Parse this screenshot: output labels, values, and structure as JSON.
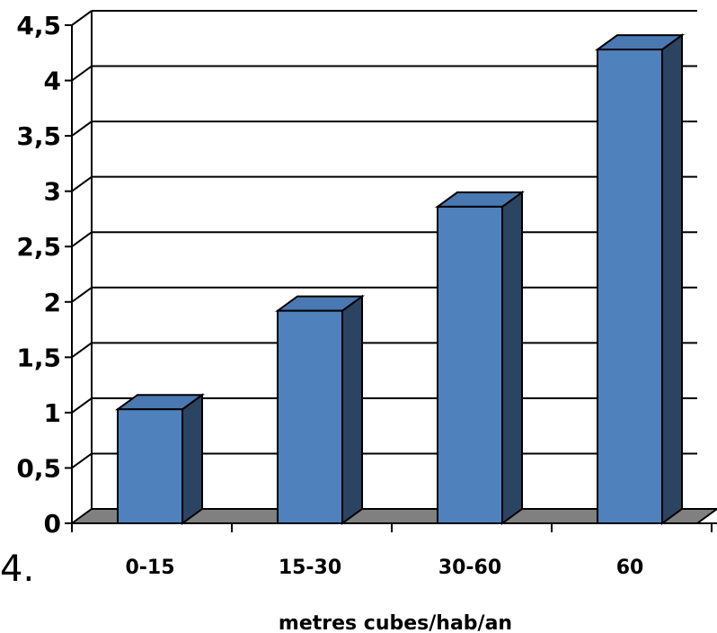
{
  "chart_data": {
    "type": "bar",
    "categories": [
      "0-15",
      "15-30",
      "30-60",
      "60"
    ],
    "values": [
      1.03,
      1.92,
      2.86,
      4.28
    ],
    "title": "",
    "xlabel": "metres cubes/hab/an",
    "ylabel": "",
    "ylim": [
      0,
      4.5
    ],
    "yticks": [
      "0",
      "0,5",
      "1",
      "1,5",
      "2",
      "2,5",
      "3",
      "3,5",
      "4",
      "4,5"
    ],
    "grid": true,
    "style": "3d-column",
    "colors": {
      "front": "#4f81bd",
      "side": "#2b4462",
      "top": "#4a78b0",
      "floor": "#808080",
      "grid": "#000000"
    }
  },
  "fragment_text": "4."
}
